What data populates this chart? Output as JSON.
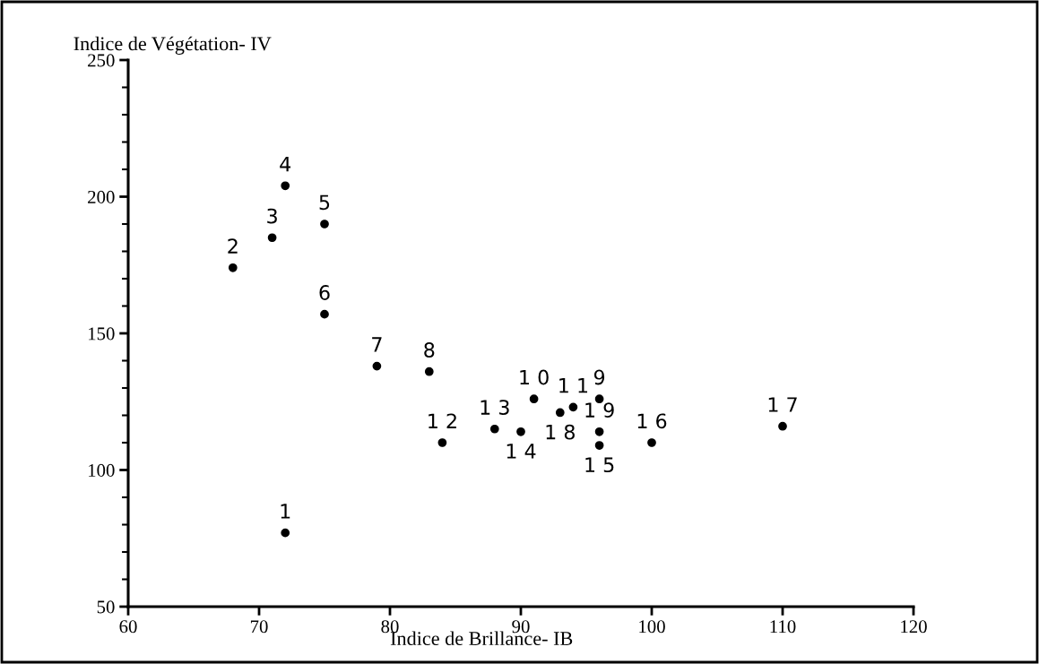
{
  "chart_data": {
    "type": "scatter",
    "xlabel": "Indice de Brillance- IB",
    "ylabel": "Indice de Végétation- IV",
    "x": [
      72,
      68,
      71,
      72,
      75,
      75,
      79,
      83,
      96,
      91,
      94,
      84,
      88,
      90,
      96,
      100,
      110,
      93,
      96
    ],
    "values": [
      77,
      174,
      185,
      204,
      190,
      157,
      138,
      136,
      126,
      126,
      123,
      110,
      115,
      114,
      109,
      110,
      116,
      121,
      114
    ],
    "color": "#000000",
    "marker": "circle",
    "xlim": [
      60,
      120
    ],
    "xticks": [
      60,
      70,
      80,
      90,
      100,
      110,
      120
    ],
    "ylim": [
      50,
      250
    ],
    "yticks": [
      50,
      100,
      150,
      200,
      250
    ],
    "grid": false,
    "annotations": [
      {
        "text": "1",
        "x": 72,
        "y": 77
      },
      {
        "text": "2",
        "x": 68,
        "y": 174
      },
      {
        "text": "3",
        "x": 71,
        "y": 185
      },
      {
        "text": "4",
        "x": 72,
        "y": 204
      },
      {
        "text": "5",
        "x": 75,
        "y": 190
      },
      {
        "text": "6",
        "x": 75,
        "y": 157
      },
      {
        "text": "7",
        "x": 79,
        "y": 138
      },
      {
        "text": "8",
        "x": 83,
        "y": 136
      },
      {
        "text": "9",
        "x": 96,
        "y": 126
      },
      {
        "text": "1 0",
        "x": 91,
        "y": 126
      },
      {
        "text": "1 1",
        "x": 94,
        "y": 123
      },
      {
        "text": "1 2",
        "x": 84,
        "y": 110
      },
      {
        "text": "1 3",
        "x": 88,
        "y": 115
      },
      {
        "text": "1 4",
        "x": 90,
        "y": 114
      },
      {
        "text": "1 5",
        "x": 96,
        "y": 109
      },
      {
        "text": "1 6",
        "x": 100,
        "y": 110
      },
      {
        "text": "1 7",
        "x": 110,
        "y": 116
      },
      {
        "text": "1 8",
        "x": 93,
        "y": 121
      },
      {
        "text": "1 9",
        "x": 96,
        "y": 114
      }
    ]
  }
}
